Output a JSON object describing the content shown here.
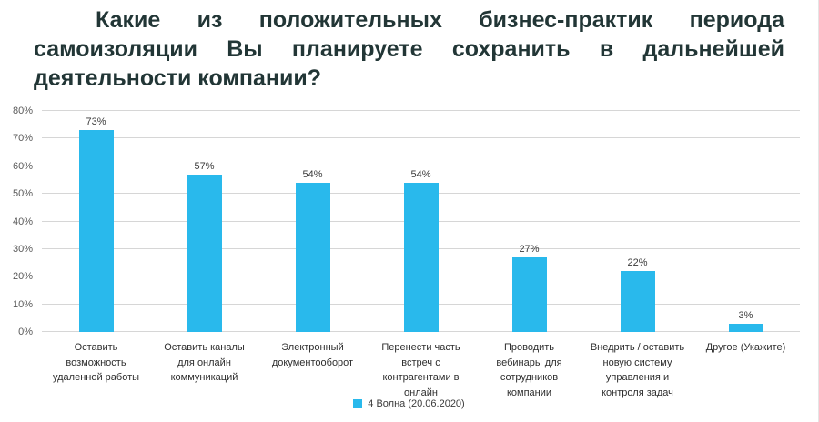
{
  "title": {
    "full": "Какие из положительных бизнес-практик периода самоизоляции Вы планируете сохранить в дальнейшей деятельности компании?",
    "lines": [
      "Какие из положительных бизнес-практик периода",
      "самоизоляции Вы планируете сохранить в дальнейшей",
      "деятельности компании?"
    ],
    "color": "#223636"
  },
  "chart_data": {
    "type": "bar",
    "categories": [
      "Оставить возможность удаленной работы",
      "Оставить каналы для онлайн коммуникаций",
      "Электронный документооборот",
      "Перенести часть встреч с контрагентами в онлайн",
      "Проводить вебинары для сотрудников компании",
      "Внедрить / оставить новую систему управления и контроля задач",
      "Другое (Укажите)"
    ],
    "values": [
      73,
      57,
      54,
      54,
      27,
      22,
      3
    ],
    "value_labels": [
      "73%",
      "57%",
      "54%",
      "54%",
      "27%",
      "22%",
      "3%"
    ],
    "ylim": [
      0,
      80
    ],
    "yticks": [
      0,
      10,
      20,
      30,
      40,
      50,
      60,
      70,
      80
    ],
    "ytick_labels": [
      "0%",
      "10%",
      "20%",
      "30%",
      "40%",
      "50%",
      "60%",
      "70%",
      "80%"
    ],
    "grid": true,
    "bar_color": "#29b9ec",
    "legend": {
      "label": "4 Волна (20.06.2020)",
      "position": "bottom-center",
      "swatch_color": "#29b9ec"
    }
  }
}
